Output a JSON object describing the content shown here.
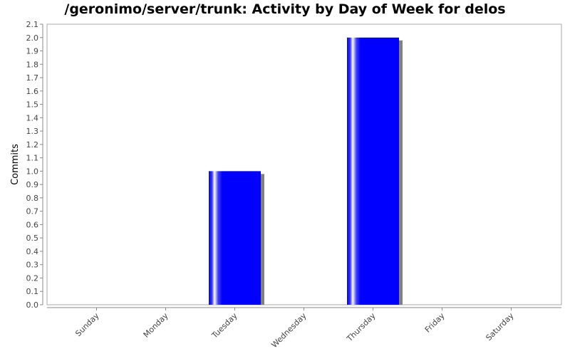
{
  "chart_data": {
    "type": "bar",
    "title": "/geronimo/server/trunk: Activity by Day of Week for delos",
    "xlabel": "",
    "ylabel": "Commits",
    "categories": [
      "Sunday",
      "Monday",
      "Tuesday",
      "Wednesday",
      "Thursday",
      "Friday",
      "Saturday"
    ],
    "values": [
      0,
      0,
      1,
      0,
      2,
      0,
      0
    ],
    "ylim": [
      0,
      2.1
    ],
    "y_ticks": [
      "0.0",
      "0.1",
      "0.2",
      "0.3",
      "0.4",
      "0.5",
      "0.6",
      "0.7",
      "0.8",
      "0.9",
      "1.0",
      "1.1",
      "1.2",
      "1.3",
      "1.4",
      "1.5",
      "1.6",
      "1.7",
      "1.8",
      "1.9",
      "2.0",
      "2.1"
    ],
    "grid": false,
    "legend": "none",
    "colors": {
      "bar": "#0000ff",
      "bar_highlight": "#ffffff",
      "shadow": "#808080",
      "axis": "#888888",
      "plot_border": "#aaaaaa"
    }
  }
}
